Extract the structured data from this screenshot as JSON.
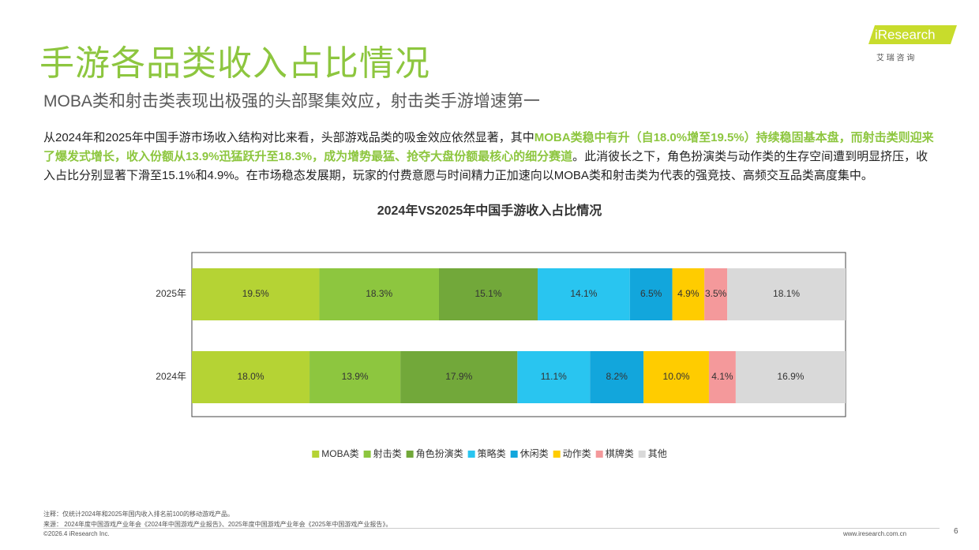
{
  "header": {
    "title": "手游各品类收入占比情况",
    "subtitle": "MOBA类和射击类表现出极强的头部聚集效应，射击类手游增速第一",
    "logo": "iResearch",
    "logo_cn": "艾 瑞 咨 询"
  },
  "paragraph": [
    {
      "text": "从2024年和2025年中国手游市场收入结构对比来看，头部游戏品类的吸金效应依然显著，其中",
      "bold": false
    },
    {
      "text": "MOBA类稳中有升（自18.0%增至19.5%）持续稳固基本盘，而射击类则迎来了爆发式增长，收入份额从13.9%迅猛跃升至18.3%，成为增势最猛、抢夺大盘份额最核心的细分赛道",
      "bold": true
    },
    {
      "text": "。此消彼长之下，角色扮演类与动作类的生存空间遭到明显挤压，收入占比分别显著下滑至15.1%和4.9%。在市场稳态发展期，玩家的付费意愿与时间精力正加速向以MOBA类和射击类为代表的强竞技、高频交互品类高度集中。",
      "bold": false
    }
  ],
  "chart_data": {
    "type": "stacked_bar_horizontal",
    "title": "2024年VS2025年中国手游收入占比情况",
    "categories": [
      "2025年",
      "2024年"
    ],
    "xlim": [
      0,
      100
    ],
    "series": [
      {
        "name": "MOBA类",
        "color": "#b5d334",
        "values": [
          19.5,
          18.0
        ],
        "value_labels": [
          "19.5%",
          "18.0%"
        ]
      },
      {
        "name": "射击类",
        "color": "#8dc63f",
        "values": [
          18.3,
          13.9
        ],
        "value_labels": [
          "18.3%",
          "13.9%"
        ]
      },
      {
        "name": "角色扮演类",
        "color": "#72a83a",
        "values": [
          15.1,
          17.9
        ],
        "value_labels": [
          "15.1%",
          "17.9%"
        ]
      },
      {
        "name": "策略类",
        "color": "#29c5f0",
        "values": [
          14.1,
          11.1
        ],
        "value_labels": [
          "14.1%",
          "11.1%"
        ]
      },
      {
        "name": "休闲类",
        "color": "#12a6dc",
        "values": [
          6.5,
          8.2
        ],
        "value_labels": [
          "6.5%",
          "8.2%"
        ]
      },
      {
        "name": "动作类",
        "color": "#ffcc00",
        "values": [
          4.9,
          10.0
        ],
        "value_labels": [
          "4.9%",
          "10.0%"
        ]
      },
      {
        "name": "棋牌类",
        "color": "#f4999b",
        "values": [
          3.5,
          4.1
        ],
        "value_labels": [
          "3.5%",
          "4.1%"
        ]
      },
      {
        "name": "其他",
        "color": "#d9d9d9",
        "values": [
          18.1,
          16.9
        ],
        "value_labels": [
          "18.1%",
          "16.9%"
        ]
      }
    ]
  },
  "footer": {
    "note": "注释：仅统计2024年和2025年国内收入排名前100的移动游戏产品。",
    "source": "来源：   2024年度中国游戏产业年会《2024年中国游戏产业报告》、2025年度中国游戏产业年会《2025年中国游戏产业报告》。",
    "copyright": "©2026.4 iResearch Inc.",
    "website": "www.iresearch.com.cn",
    "page": "6"
  }
}
